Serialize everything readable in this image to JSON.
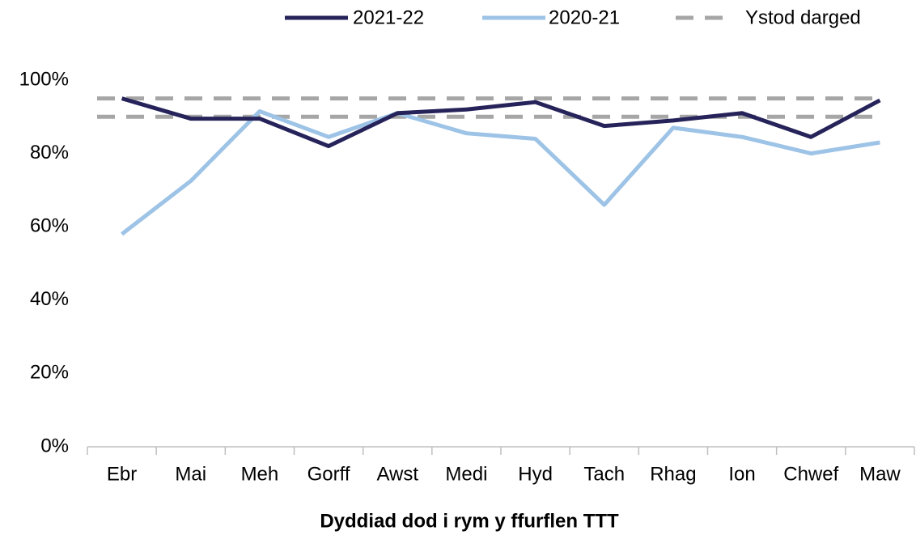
{
  "chart_data": {
    "type": "line",
    "x_label": "Dyddiad dod i rym y ffurflen TTT",
    "categories": [
      "Ebr",
      "Mai",
      "Meh",
      "Gorff",
      "Awst",
      "Medi",
      "Hyd",
      "Tach",
      "Rhag",
      "Ion",
      "Chwef",
      "Maw"
    ],
    "series": [
      {
        "name": "2021-22",
        "color": "#26235a",
        "values": [
          95,
          89.5,
          89.5,
          82,
          91,
          92,
          94,
          87.5,
          89,
          91,
          84.5,
          94.5
        ]
      },
      {
        "name": "2020-21",
        "color": "#9dc3e6",
        "values": [
          58,
          72.5,
          91.5,
          84.5,
          91,
          85.5,
          84,
          66,
          87,
          84.5,
          80,
          83
        ]
      }
    ],
    "target_range": {
      "name": "Ystod darged",
      "color": "#a6a6a6",
      "values": [
        90,
        95
      ]
    },
    "ylim": [
      0,
      100
    ],
    "yticks": [
      {
        "value": 0,
        "label": "0%"
      },
      {
        "value": 20,
        "label": "20%"
      },
      {
        "value": 40,
        "label": "40%"
      },
      {
        "value": 60,
        "label": "60%"
      },
      {
        "value": 80,
        "label": "80%"
      },
      {
        "value": 100,
        "label": "100%"
      }
    ],
    "grid": false,
    "legend": "top"
  }
}
